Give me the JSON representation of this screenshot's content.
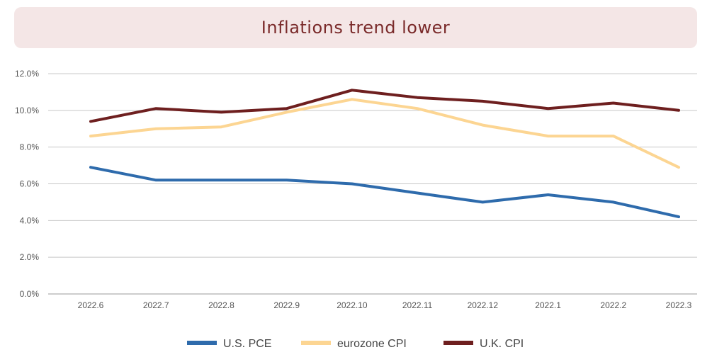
{
  "chart_data": {
    "type": "line",
    "title": "Inflations trend lower",
    "xlabel": "",
    "ylabel": "",
    "categories": [
      "2022.6",
      "2022.7",
      "2022.8",
      "2022.9",
      "2022.10",
      "2022.11",
      "2022.12",
      "2022.1",
      "2022.2",
      "2022.3"
    ],
    "ylim": [
      0,
      12
    ],
    "yticks": [
      "0.0%",
      "2.0%",
      "4.0%",
      "6.0%",
      "8.0%",
      "10.0%",
      "12.0%"
    ],
    "grid": true,
    "legend_position": "bottom",
    "series": [
      {
        "name": "U.S. PCE",
        "color": "#2e6bac",
        "values": [
          6.9,
          6.2,
          6.2,
          6.2,
          6.0,
          5.5,
          5.0,
          5.4,
          5.0,
          4.2
        ]
      },
      {
        "name": "eurozone CPI",
        "color": "#fcd592",
        "values": [
          8.6,
          9.0,
          9.1,
          9.9,
          10.6,
          10.1,
          9.2,
          8.6,
          8.6,
          6.9
        ]
      },
      {
        "name": "U.K. CPI",
        "color": "#6e1f1f",
        "values": [
          9.4,
          10.1,
          9.9,
          10.1,
          11.1,
          10.7,
          10.5,
          10.1,
          10.4,
          10.0
        ]
      }
    ]
  }
}
